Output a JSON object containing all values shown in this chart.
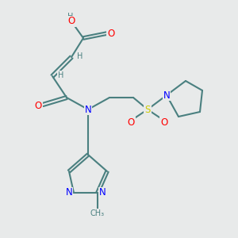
{
  "bg_color": "#e8eaea",
  "atom_colors": {
    "C": "#4a8080",
    "O": "#ff0000",
    "N": "#0000ff",
    "S": "#cccc00",
    "H_label": "#4a8080"
  },
  "bond_color": "#4a8080",
  "bond_width": 1.5,
  "font_size_atom": 8.5,
  "font_size_small": 7.0,
  "xlim": [
    0,
    10
  ],
  "ylim": [
    0,
    10
  ]
}
